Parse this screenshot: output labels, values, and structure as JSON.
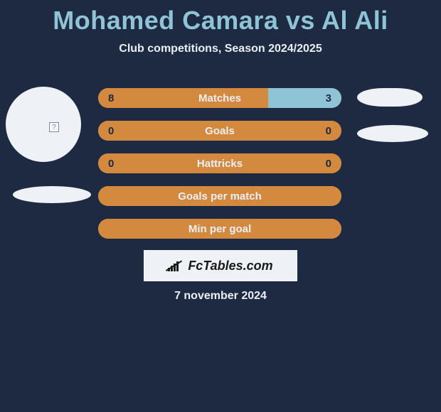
{
  "title": "Mohamed Camara vs Al Ali",
  "subtitle": "Club competitions, Season 2024/2025",
  "colors": {
    "background": "#1d2a42",
    "title": "#8fc3d6",
    "text": "#eaeff6",
    "bar_left": "#d3893e",
    "bar_right": "#8fc3d6",
    "avatar_bg": "#eef2f6"
  },
  "bars": [
    {
      "label": "Matches",
      "left": "8",
      "right": "3",
      "left_pct": 70,
      "right_pct": 30
    },
    {
      "label": "Goals",
      "left": "0",
      "right": "0",
      "left_pct": 100,
      "right_pct": 0
    },
    {
      "label": "Hattricks",
      "left": "0",
      "right": "0",
      "left_pct": 100,
      "right_pct": 0
    },
    {
      "label": "Goals per match",
      "left": "",
      "right": "",
      "left_pct": 100,
      "right_pct": 0
    },
    {
      "label": "Min per goal",
      "left": "",
      "right": "",
      "left_pct": 100,
      "right_pct": 0
    }
  ],
  "brand": "FcTables.com",
  "date": "7 november 2024",
  "avatars": {
    "left": {
      "has_photo": true
    },
    "right": {
      "has_photo": false
    }
  }
}
